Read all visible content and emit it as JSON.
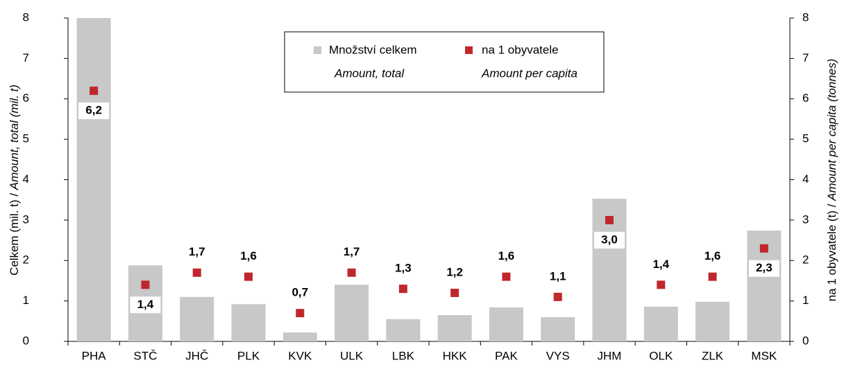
{
  "chart_data": {
    "type": "bar",
    "categories": [
      "PHA",
      "STČ",
      "JHČ",
      "PLK",
      "KVK",
      "ULK",
      "LBK",
      "HKK",
      "PAK",
      "VYS",
      "JHM",
      "OLK",
      "ZLK",
      "MSK"
    ],
    "series": [
      {
        "name": "Množství celkem",
        "name_en": "Amount, total",
        "color": "#c8c8c8",
        "values": [
          8.0,
          1.88,
          1.1,
          0.92,
          0.22,
          1.4,
          0.55,
          0.65,
          0.84,
          0.6,
          3.53,
          0.86,
          0.98,
          2.74
        ]
      },
      {
        "name": "na 1 obyvatele",
        "name_en": "Amount per capita",
        "color": "#c0272d",
        "axis": "y2",
        "values": [
          6.2,
          1.4,
          1.7,
          1.6,
          0.7,
          1.7,
          1.3,
          1.2,
          1.6,
          1.1,
          3.0,
          1.4,
          1.6,
          2.3
        ],
        "value_labels": [
          "6,2",
          "1,4",
          "1,7",
          "1,6",
          "0,7",
          "1,7",
          "1,3",
          "1,2",
          "1,6",
          "1,1",
          "3,0",
          "1,4",
          "1,6",
          "2,3"
        ]
      }
    ],
    "ylabel": "Celkem (mil. t) / ",
    "ylabel_en": "Amount, total (mil. t)",
    "y2label": "na 1 obyvatele (t) / ",
    "y2label_en": "Amount per capita (tonnes)",
    "ylim": [
      0,
      8
    ],
    "yticks": [
      0,
      1,
      2,
      3,
      4,
      5,
      6,
      7,
      8
    ],
    "y2lim": [
      0,
      8
    ],
    "y2ticks": [
      0,
      1,
      2,
      3,
      4,
      5,
      6,
      7,
      8
    ]
  }
}
